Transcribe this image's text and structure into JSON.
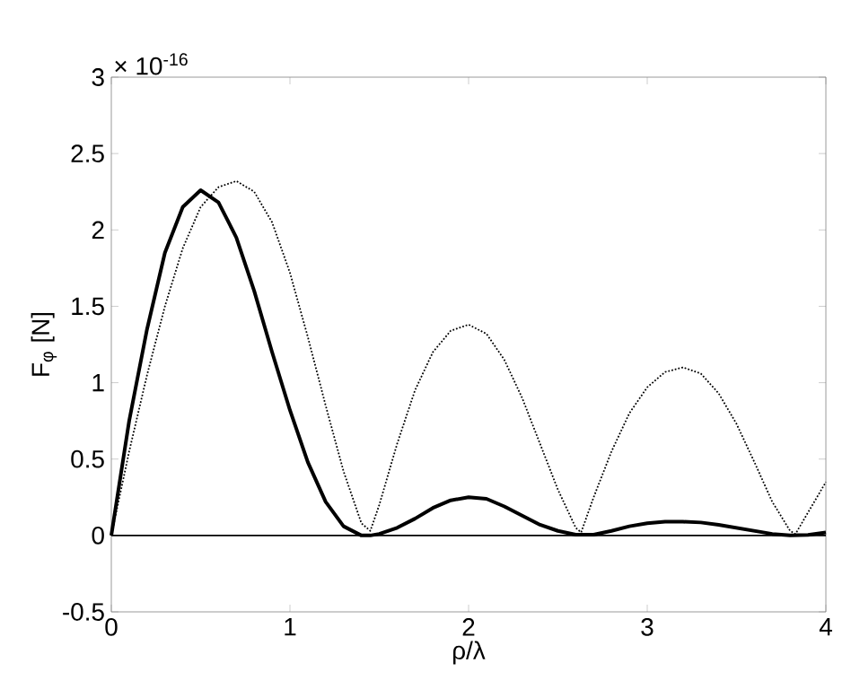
{
  "chart_data": {
    "type": "line",
    "xlabel": "ρ/λ",
    "ylabel": "F$_{φ}$ [N]",
    "annotations": [
      "× 10$^{-16}$"
    ],
    "xlim": [
      0,
      4
    ],
    "ylim": [
      -0.5,
      3
    ],
    "xticks": [
      0,
      1,
      2,
      3,
      4
    ],
    "yticks": [
      -0.5,
      0,
      0.5,
      1,
      1.5,
      2,
      2.5,
      3
    ],
    "ref_lines": [
      {
        "axis": "y",
        "value": 0,
        "color": "#000000"
      }
    ],
    "series": [
      {
        "color": "#000000",
        "line_style": "solid",
        "x": [
          0,
          0.1,
          0.2,
          0.3,
          0.4,
          0.5,
          0.6,
          0.7,
          0.8,
          0.9,
          1.0,
          1.1,
          1.2,
          1.3,
          1.4,
          1.45,
          1.5,
          1.6,
          1.7,
          1.8,
          1.9,
          2.0,
          2.1,
          2.2,
          2.3,
          2.4,
          2.5,
          2.6,
          2.7,
          2.8,
          2.9,
          3.0,
          3.1,
          3.2,
          3.3,
          3.4,
          3.5,
          3.6,
          3.7,
          3.8,
          3.9,
          4.0
        ],
        "values": [
          0,
          0.75,
          1.35,
          1.85,
          2.15,
          2.26,
          2.18,
          1.95,
          1.6,
          1.2,
          0.82,
          0.48,
          0.22,
          0.06,
          0.0,
          0,
          0.01,
          0.05,
          0.11,
          0.18,
          0.23,
          0.25,
          0.24,
          0.19,
          0.13,
          0.07,
          0.03,
          0.005,
          0.005,
          0.03,
          0.06,
          0.08,
          0.09,
          0.09,
          0.085,
          0.07,
          0.05,
          0.03,
          0.01,
          0.0,
          0.003,
          0.02
        ]
      },
      {
        "color": "#000000",
        "line_style": "dotted",
        "x": [
          0,
          0.1,
          0.2,
          0.3,
          0.4,
          0.5,
          0.6,
          0.7,
          0.8,
          0.9,
          1.0,
          1.1,
          1.2,
          1.3,
          1.4,
          1.45,
          1.5,
          1.6,
          1.7,
          1.8,
          1.9,
          2.0,
          2.1,
          2.2,
          2.3,
          2.4,
          2.5,
          2.6,
          2.63,
          2.7,
          2.8,
          2.9,
          3.0,
          3.1,
          3.2,
          3.3,
          3.4,
          3.5,
          3.6,
          3.7,
          3.8,
          3.83,
          3.9,
          4.0
        ],
        "values": [
          0,
          0.55,
          1.05,
          1.5,
          1.88,
          2.15,
          2.28,
          2.32,
          2.25,
          2.05,
          1.72,
          1.3,
          0.85,
          0.42,
          0.08,
          0.03,
          0.2,
          0.6,
          0.95,
          1.2,
          1.34,
          1.38,
          1.32,
          1.15,
          0.9,
          0.6,
          0.3,
          0.05,
          0.02,
          0.25,
          0.55,
          0.8,
          0.97,
          1.07,
          1.1,
          1.06,
          0.93,
          0.73,
          0.48,
          0.22,
          0.03,
          0.01,
          0.15,
          0.35
        ]
      }
    ]
  }
}
